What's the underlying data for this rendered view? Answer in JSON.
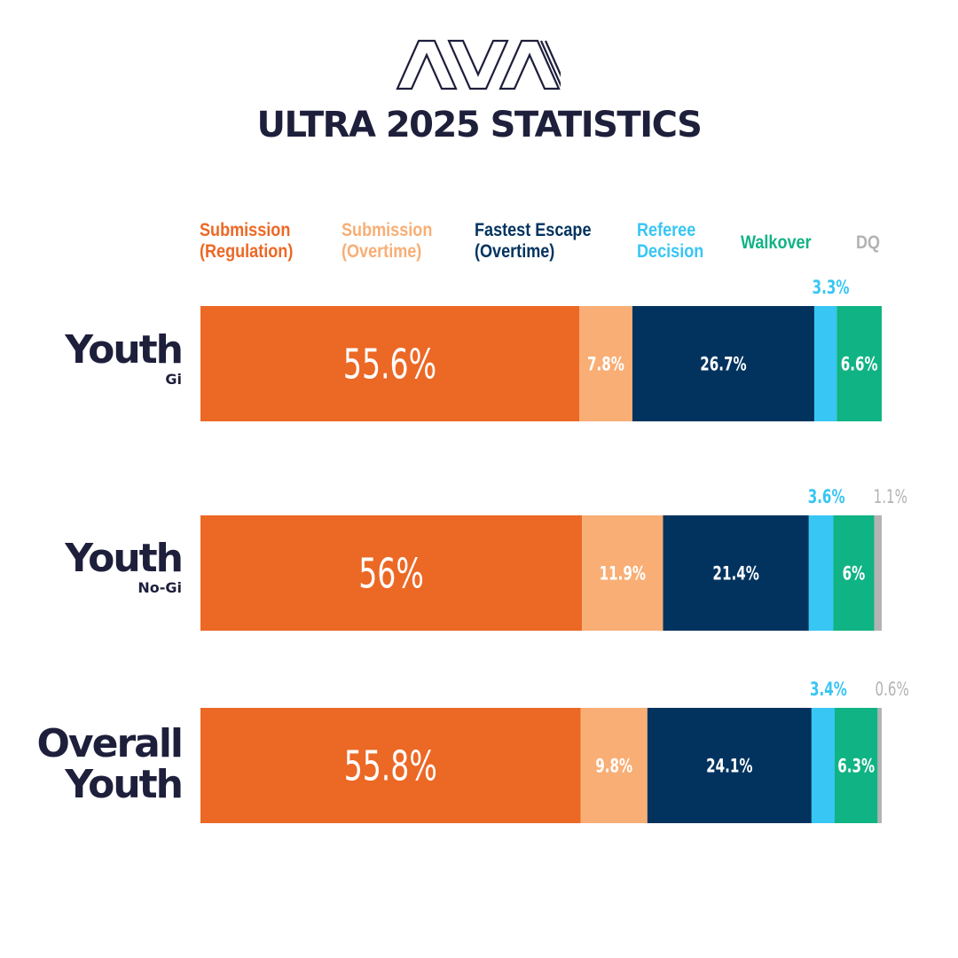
{
  "brand": {
    "logo_text": "AVA"
  },
  "title": "ULTRA 2025 STATISTICS",
  "colors": {
    "text_dark": "#1e1f3b",
    "submission_regulation": "#ec6825",
    "submission_overtime": "#f8ae75",
    "fastest_escape": "#02335f",
    "referee_decision": "#38c6f4",
    "walkover": "#10b384",
    "dq": "#b3b3b3"
  },
  "legend": [
    {
      "label": "Submission\n(Regulation)",
      "color": "#ec6825"
    },
    {
      "label": "Submission\n(Overtime)",
      "color": "#f8ae75"
    },
    {
      "label": "Fastest Escape\n(Overtime)",
      "color": "#02335f"
    },
    {
      "label": "Referee\nDecision",
      "color": "#38c6f4"
    },
    {
      "label": "Walkover",
      "color": "#10b384"
    },
    {
      "label": "DQ",
      "color": "#b3b3b3"
    }
  ],
  "chart_data": {
    "type": "bar",
    "orientation": "horizontal",
    "stacked": true,
    "unit": "%",
    "categories": [
      {
        "name": "Youth",
        "sub": "Gi"
      },
      {
        "name": "Youth",
        "sub": "No-Gi"
      },
      {
        "name": "Overall\nYouth",
        "sub": ""
      }
    ],
    "series": [
      {
        "name": "Submission (Regulation)",
        "color": "#ec6825",
        "values": [
          55.6,
          56,
          55.8
        ],
        "labels": [
          "55.6%",
          "56%",
          "55.8%"
        ]
      },
      {
        "name": "Submission (Overtime)",
        "color": "#f8ae75",
        "values": [
          7.8,
          11.9,
          9.8
        ],
        "labels": [
          "7.8%",
          "11.9%",
          "9.8%"
        ]
      },
      {
        "name": "Fastest Escape (Overtime)",
        "color": "#02335f",
        "values": [
          26.7,
          21.4,
          24.1
        ],
        "labels": [
          "26.7%",
          "21.4%",
          "24.1%"
        ]
      },
      {
        "name": "Referee Decision",
        "color": "#38c6f4",
        "values": [
          3.3,
          3.6,
          3.4
        ],
        "labels": [
          "3.3%",
          "3.6%",
          "3.4%"
        ]
      },
      {
        "name": "Walkover",
        "color": "#10b384",
        "values": [
          6.6,
          6,
          6.3
        ],
        "labels": [
          "6.6%",
          "6%",
          "6.3%"
        ]
      },
      {
        "name": "DQ",
        "color": "#b3b3b3",
        "values": [
          0,
          1.1,
          0.6
        ],
        "labels": [
          "",
          "1.1%",
          "0.6%"
        ]
      }
    ]
  }
}
